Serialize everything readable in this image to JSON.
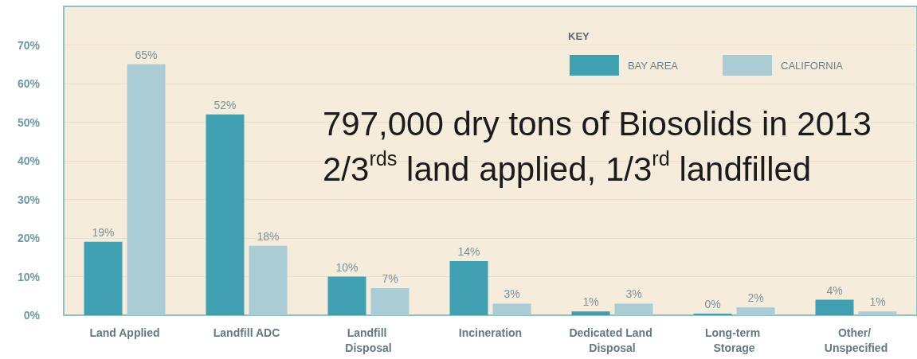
{
  "chart_data": {
    "type": "bar",
    "categories": [
      "Land Applied",
      "Landfill ADC",
      "Landfill Disposal",
      "Incineration",
      "Dedicated Land Disposal",
      "Long-term Storage",
      "Other/ Unspecified"
    ],
    "series": [
      {
        "name": "BAY AREA",
        "color": "#3fa0b1",
        "values": [
          19,
          52,
          10,
          14,
          1,
          0,
          4
        ],
        "value_labels": [
          "19%",
          "52%",
          "10%",
          "14%",
          "1%",
          "0%",
          "4%"
        ]
      },
      {
        "name": "CALIFORNIA",
        "color": "#a9ccd5",
        "values": [
          65,
          18,
          7,
          3,
          3,
          2,
          1
        ],
        "value_labels": [
          "65%",
          "18%",
          "7%",
          "3%",
          "3%",
          "2%",
          "1%"
        ]
      }
    ],
    "ylim": [
      0,
      80
    ],
    "yticks": [
      {
        "value": 0,
        "label": "0%"
      },
      {
        "value": 10,
        "label": "10%"
      },
      {
        "value": 20,
        "label": "20%"
      },
      {
        "value": 30,
        "label": "30%"
      },
      {
        "value": 40,
        "label": "40%"
      },
      {
        "value": 50,
        "label": "50%"
      },
      {
        "value": 60,
        "label": "60%"
      },
      {
        "value": 70,
        "label": "70%"
      }
    ],
    "grid": "y",
    "legend": "top right",
    "legend_title": "KEY",
    "annotations": [
      "797,000 dry tons of Biosolids in 2013",
      "2/3$^{rds}$ land applied, 1/3$^{rd}$ landfilled"
    ]
  }
}
